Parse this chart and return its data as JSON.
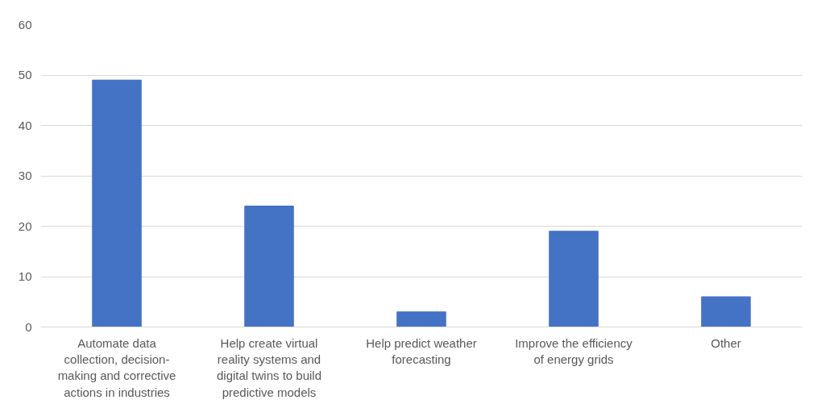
{
  "chart_data": {
    "type": "bar",
    "categories": [
      "Automate data collection, decision-making and corrective actions in industries",
      "Help create virtual reality systems and digital twins to build predictive models",
      "Help predict weather forecasting",
      "Improve the efficiency of energy grids",
      "Other"
    ],
    "values": [
      49,
      24,
      3,
      19,
      6
    ],
    "color": "#4472c4",
    "ylim": [
      0,
      60
    ],
    "yticks": [
      0,
      10,
      20,
      30,
      40,
      50,
      60
    ],
    "grid": "y"
  }
}
